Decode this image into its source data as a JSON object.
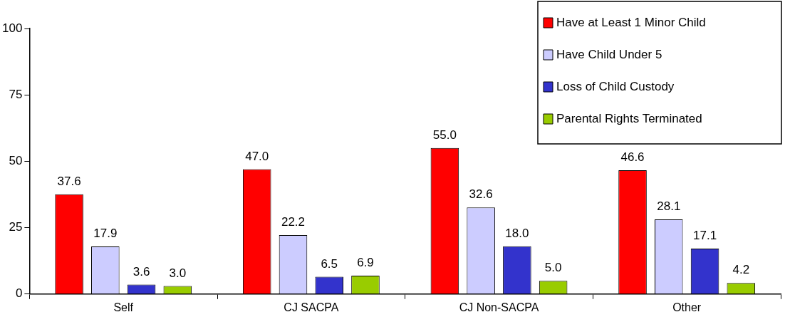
{
  "chart_data": {
    "type": "bar",
    "categories": [
      "Self",
      "CJ SACPA",
      "CJ Non-SACPA",
      "Other"
    ],
    "series": [
      {
        "name": "Have at Least 1 Minor Child",
        "color": "#ff0000",
        "values": [
          37.6,
          47.0,
          55.0,
          46.6
        ],
        "value_labels": [
          "37.6",
          "47.0",
          "55.0",
          "46.6"
        ]
      },
      {
        "name": "Have Child Under 5",
        "color": "#ccccff",
        "values": [
          17.9,
          22.2,
          32.6,
          28.1
        ],
        "value_labels": [
          "17.9",
          "22.2",
          "32.6",
          "28.1"
        ]
      },
      {
        "name": "Loss of Child Custody",
        "color": "#3333cc",
        "values": [
          3.6,
          6.5,
          18.0,
          17.1
        ],
        "value_labels": [
          "3.6",
          "6.5",
          "18.0",
          "17.1"
        ]
      },
      {
        "name": "Parental Rights Terminated",
        "color": "#99cc00",
        "values": [
          3.0,
          6.9,
          5.0,
          4.2
        ],
        "value_labels": [
          "3.0",
          "6.9",
          "5.0",
          "4.2"
        ]
      }
    ],
    "ylim": [
      0,
      100
    ],
    "yticks": [
      0,
      25,
      50,
      75,
      100
    ],
    "grid": false,
    "legend": "top right"
  }
}
